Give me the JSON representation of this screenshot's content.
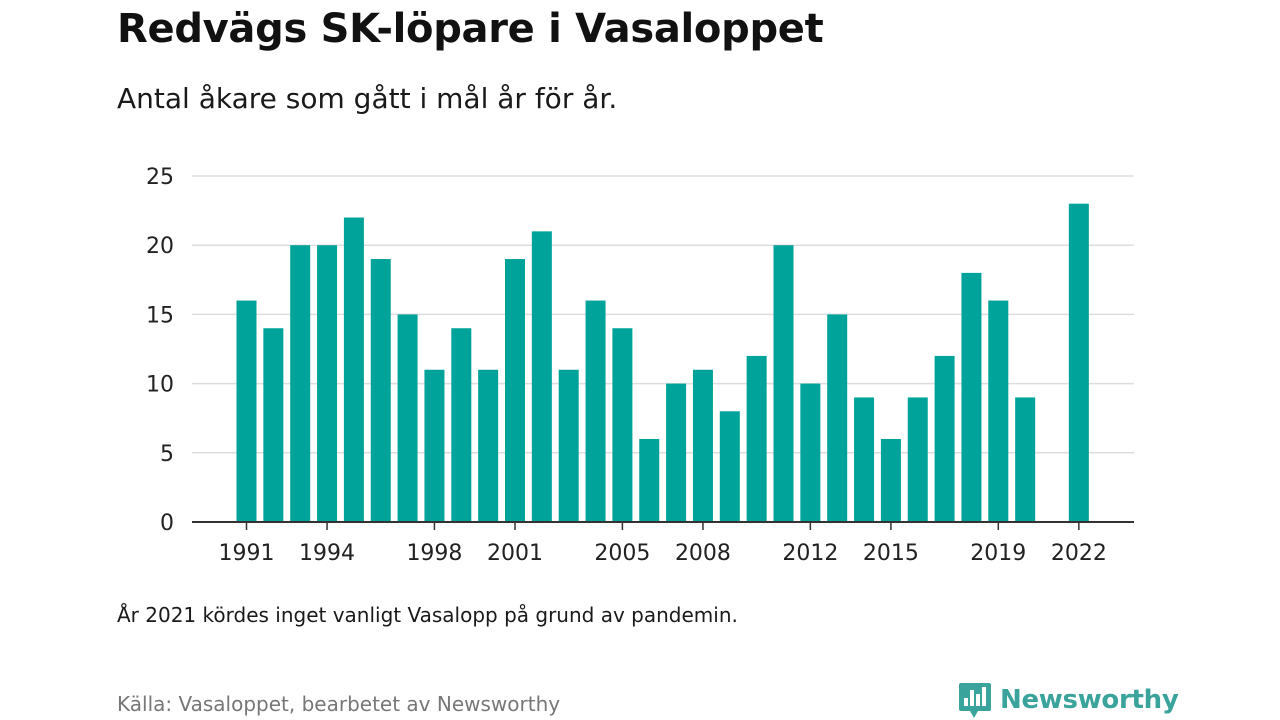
{
  "header": {
    "title": "Redvägs SK-löpare i Vasaloppet",
    "subtitle": "Antal åkare som gått i mål år för år."
  },
  "footer": {
    "note": "År 2021 kördes inget vanligt Vasalopp på grund av pandemin.",
    "source": "Källa: Vasaloppet, bearbetet av Newsworthy",
    "brand_name": "Newsworthy",
    "brand_icon": "newsworthy-logo-icon"
  },
  "colors": {
    "bar": "#00a39a",
    "brand": "#3aa39c",
    "grid": "#dddddd",
    "axis": "#333333"
  },
  "chart_data": {
    "type": "bar",
    "title": "Redvägs SK-löpare i Vasaloppet",
    "subtitle": "Antal åkare som gått i mål år för år.",
    "xlabel": "",
    "ylabel": "",
    "ylim": [
      0,
      25
    ],
    "yticks": [
      0,
      5,
      10,
      15,
      20,
      25
    ],
    "grid": true,
    "x_tick_labels": [
      "1991",
      "1994",
      "1998",
      "2001",
      "2005",
      "2008",
      "2012",
      "2015",
      "2019",
      "2022"
    ],
    "categories": [
      "1991",
      "1992",
      "1993",
      "1994",
      "1995",
      "1996",
      "1997",
      "1998",
      "1999",
      "2000",
      "2001",
      "2002",
      "2003",
      "2004",
      "2005",
      "2006",
      "2007",
      "2008",
      "2009",
      "2010",
      "2011",
      "2012",
      "2013",
      "2014",
      "2015",
      "2016",
      "2017",
      "2018",
      "2019",
      "2020",
      "2021",
      "2022"
    ],
    "values": [
      16,
      14,
      20,
      20,
      22,
      19,
      15,
      11,
      14,
      11,
      19,
      21,
      11,
      16,
      14,
      6,
      10,
      11,
      8,
      12,
      20,
      10,
      15,
      9,
      6,
      9,
      12,
      18,
      16,
      9,
      null,
      23
    ]
  }
}
